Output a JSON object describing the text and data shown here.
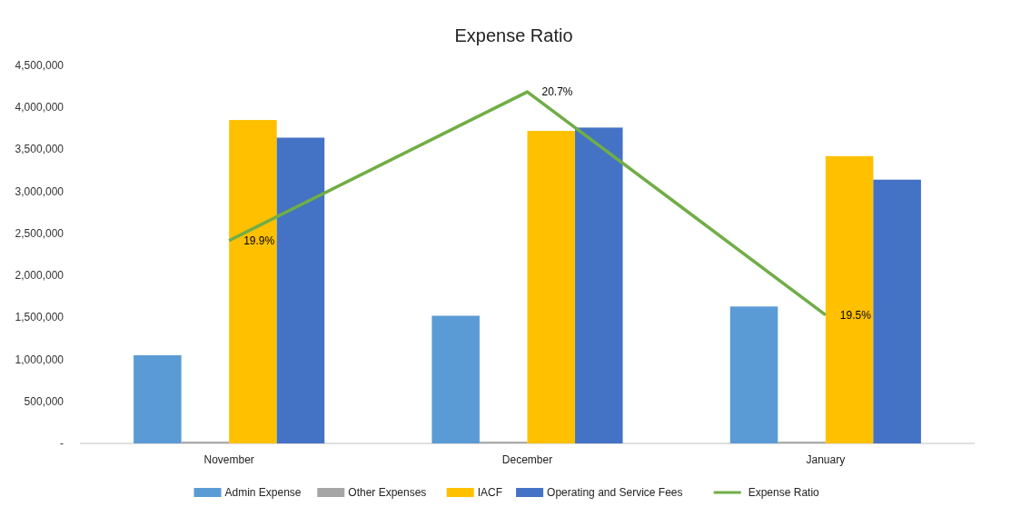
{
  "chart_data": {
    "type": "bar",
    "title": "Expense Ratio",
    "categories": [
      "November",
      "December",
      "January"
    ],
    "series": [
      {
        "name": "Admin Expense",
        "color": "#5b9bd5",
        "values": [
          1050000,
          1520000,
          1630000
        ]
      },
      {
        "name": "Other Expenses",
        "color": "#a5a5a5",
        "values": [
          20000,
          20000,
          20000
        ]
      },
      {
        "name": "IACF",
        "color": "#ffc000",
        "values": [
          3850000,
          3720000,
          3420000
        ]
      },
      {
        "name": "Operating and Service Fees",
        "color": "#4472c4",
        "values": [
          3640000,
          3760000,
          3140000
        ]
      },
      {
        "name": "Expense Ratio",
        "type": "line",
        "axis": "y2",
        "color": "#70ad47",
        "values": [
          19.9,
          20.7,
          19.5
        ],
        "value_labels": [
          "19.9%",
          "20.7%",
          "19.5%"
        ]
      }
    ],
    "ylim": [
      0,
      4500000
    ],
    "yticks": [
      {
        "value": 0,
        "label": "-"
      },
      {
        "value": 500000,
        "label": "500,000"
      },
      {
        "value": 1000000,
        "label": "1,000,000"
      },
      {
        "value": 1500000,
        "label": "1,500,000"
      },
      {
        "value": 2000000,
        "label": "2,000,000"
      },
      {
        "value": 2500000,
        "label": "2,500,000"
      },
      {
        "value": 3000000,
        "label": "3,000,000"
      },
      {
        "value": 3500000,
        "label": "3,500,000"
      },
      {
        "value": 4000000,
        "label": "4,000,000"
      },
      {
        "value": 4500000,
        "label": "4,500,000"
      }
    ],
    "grid": false,
    "legend": "bottom"
  }
}
